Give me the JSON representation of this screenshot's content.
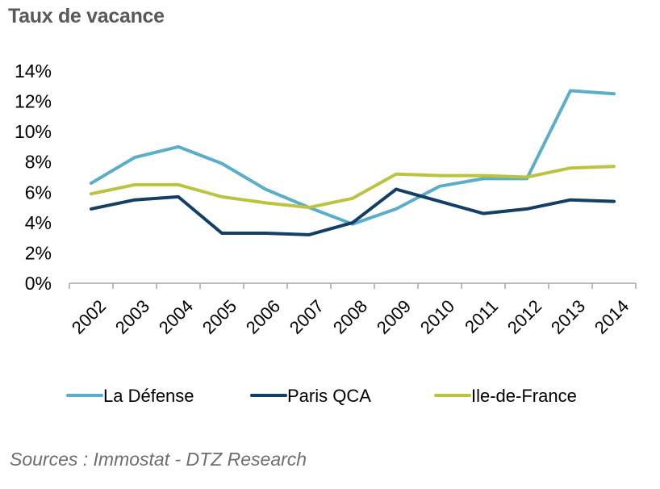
{
  "title": "Taux de vacance",
  "source": "Sources : Immostat - DTZ Research",
  "chart_data": {
    "type": "line",
    "title": "Taux de vacance",
    "xlabel": "",
    "ylabel": "",
    "x": [
      "2002",
      "2003",
      "2004",
      "2005",
      "2006",
      "2007",
      "2008",
      "2009",
      "2010",
      "2011",
      "2012",
      "2013",
      "2014"
    ],
    "ylim": [
      0,
      14
    ],
    "yticks": [
      0,
      2,
      4,
      6,
      8,
      10,
      12,
      14
    ],
    "ytick_labels": [
      "0%",
      "2%",
      "4%",
      "6%",
      "8%",
      "10%",
      "12%",
      "14%"
    ],
    "grid": false,
    "legend_position": "bottom",
    "series": [
      {
        "name": "La Défense",
        "color": "#5aaec9",
        "values": [
          6.6,
          8.3,
          9.0,
          7.9,
          6.2,
          5.0,
          3.9,
          4.9,
          6.4,
          6.9,
          6.9,
          12.7,
          12.5
        ]
      },
      {
        "name": "Paris QCA",
        "color": "#123f63",
        "values": [
          4.9,
          5.5,
          5.7,
          3.3,
          3.3,
          3.2,
          4.0,
          6.2,
          5.4,
          4.6,
          4.9,
          5.5,
          5.4
        ]
      },
      {
        "name": "Ile-de-France",
        "color": "#bcc33f",
        "values": [
          5.9,
          6.5,
          6.5,
          5.7,
          5.3,
          5.0,
          5.6,
          7.2,
          7.1,
          7.1,
          7.0,
          7.6,
          7.7
        ]
      }
    ]
  }
}
